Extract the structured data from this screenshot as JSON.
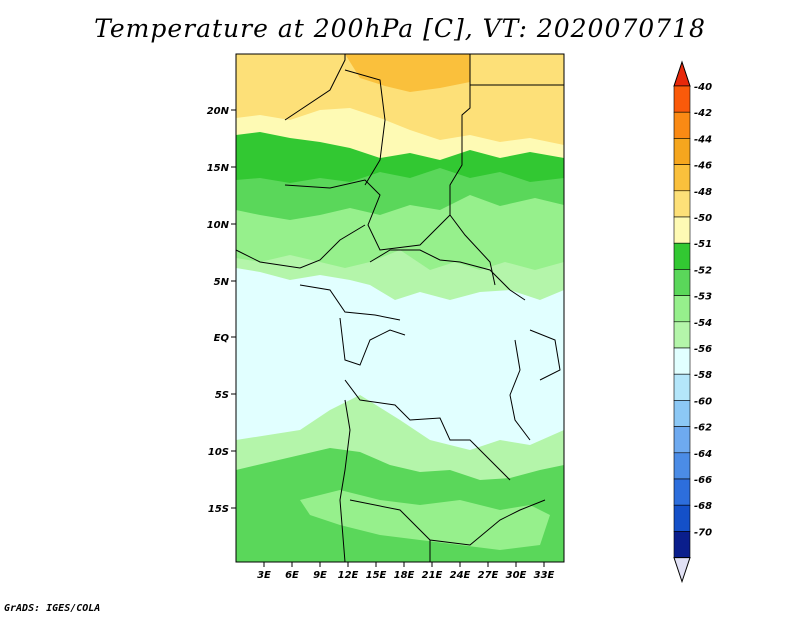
{
  "title": "Temperature at 200hPa [C], VT: 2020070718",
  "credit": "GrADS: IGES/COLA",
  "map": {
    "lat_labels": [
      "20N",
      "15N",
      "10N",
      "5N",
      "EQ",
      "5S",
      "10S",
      "15S"
    ],
    "lon_labels": [
      "3E",
      "6E",
      "9E",
      "12E",
      "15E",
      "18E",
      "21E",
      "24E",
      "27E",
      "30E",
      "33E"
    ]
  },
  "colorbar": {
    "labels": [
      "-40",
      "-42",
      "-44",
      "-46",
      "-48",
      "-50",
      "-51",
      "-52",
      "-53",
      "-54",
      "-56",
      "-58",
      "-60",
      "-62",
      "-64",
      "-66",
      "-68",
      "-70"
    ],
    "colors": {
      "top_arrow": "#e8280a",
      "bands": [
        "#fa5a0a",
        "#fa8a14",
        "#f5a61e",
        "#fac03c",
        "#fde078",
        "#fefab4",
        "#32c832",
        "#5ad75a",
        "#96f08c",
        "#b4f5aa",
        "#e1ffff",
        "#b4e6fa",
        "#8cc8f5",
        "#6eaaf0",
        "#4b8ce6",
        "#2d6edc",
        "#1450c8",
        "#0a1e8c"
      ],
      "bottom_arrow": "#e1e1f5"
    }
  },
  "field_colors": {
    "c48": "#fac03c",
    "c50": "#fde078",
    "c51": "#fefab4",
    "c52": "#32c832",
    "c53": "#5ad75a",
    "c53b": "#96f08c",
    "c54": "#b4f5aa",
    "c56": "#e1ffff"
  }
}
